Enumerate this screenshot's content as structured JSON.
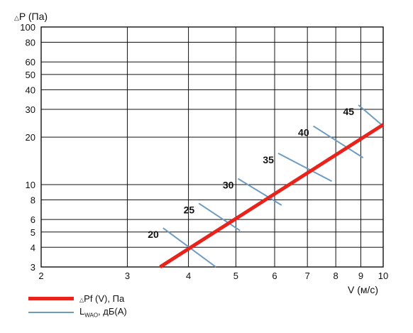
{
  "chart_data": {
    "type": "line",
    "x_scale": "log",
    "y_scale": "log",
    "xlim": [
      2,
      10
    ],
    "ylim": [
      3,
      100
    ],
    "x_ticks": [
      2,
      3,
      4,
      5,
      6,
      7,
      8,
      9,
      10
    ],
    "y_ticks": [
      3,
      4,
      5,
      6,
      8,
      10,
      20,
      30,
      40,
      50,
      60,
      80,
      100
    ],
    "xlabel": "V (м/с)",
    "ylabel_prefix": "△",
    "ylabel": "P (Па)",
    "grid": true,
    "series": [
      {
        "name": "Pf (V), Па",
        "name_prefix": "△",
        "color": "#e8231c",
        "x": [
          3.5,
          10
        ],
        "y": [
          3.0,
          24.0
        ]
      }
    ],
    "noise_lines": {
      "name_main": "L",
      "name_sub": "WAO",
      "name_suffix": ", дБ(А)",
      "color": "#6d9cc0",
      "items": [
        {
          "label": "20",
          "x": [
            3.55,
            4.55
          ],
          "y": [
            5.3,
            3.0
          ]
        },
        {
          "label": "25",
          "x": [
            4.2,
            5.1
          ],
          "y": [
            7.6,
            5.1
          ]
        },
        {
          "label": "30",
          "x": [
            5.05,
            6.2
          ],
          "y": [
            10.9,
            7.4
          ]
        },
        {
          "label": "35",
          "x": [
            6.1,
            7.85
          ],
          "y": [
            15.8,
            10.5
          ]
        },
        {
          "label": "40",
          "x": [
            7.2,
            9.1
          ],
          "y": [
            23.5,
            14.8
          ]
        },
        {
          "label": "45",
          "x": [
            8.9,
            10
          ],
          "y": [
            32.0,
            23.5
          ]
        }
      ]
    }
  }
}
